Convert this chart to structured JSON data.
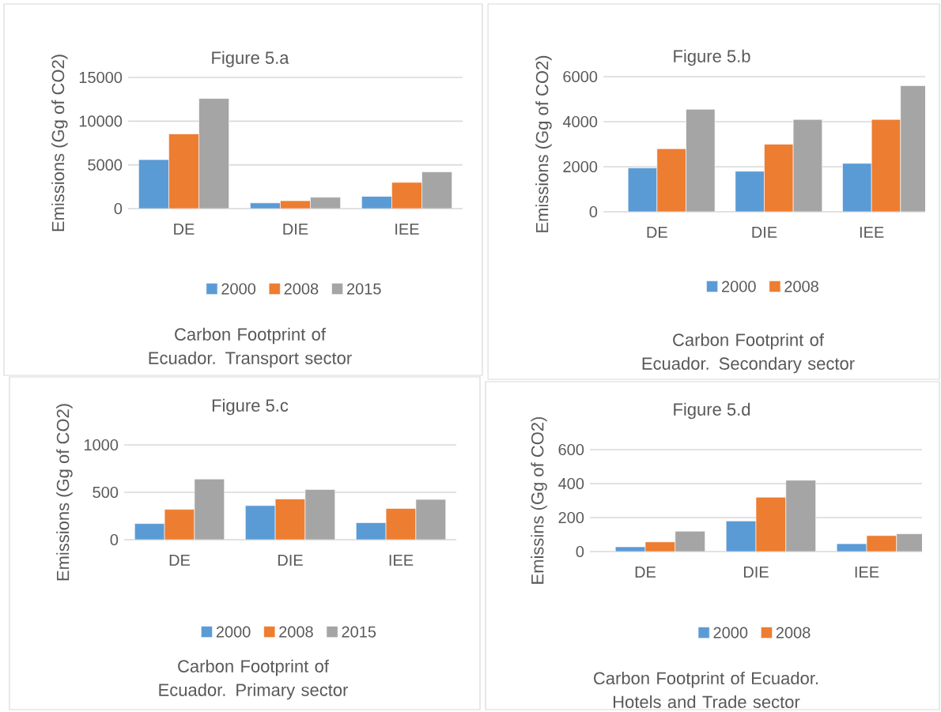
{
  "chart_data": [
    {
      "type": "bar",
      "title": "Figure 5.a",
      "ylabel": "Emissions (Gg of CO2)",
      "categories": [
        "DE",
        "DIE",
        "IEE"
      ],
      "series": [
        {
          "name": "2000",
          "color": "#5b9bd5",
          "values": [
            5600,
            650,
            1400
          ]
        },
        {
          "name": "2008",
          "color": "#ed7d31",
          "values": [
            8550,
            900,
            3000
          ]
        },
        {
          "name": "2015",
          "color": "#a5a5a5",
          "values": [
            12600,
            1300,
            4200
          ]
        }
      ],
      "ylim": [
        0,
        15000
      ],
      "yticks": [
        0,
        5000,
        10000,
        15000
      ],
      "grid": "y",
      "legend": "bottom",
      "annotations": [
        "Carbon Footprint of Ecuador. Transport sector"
      ]
    },
    {
      "type": "bar",
      "title": "Figure 5.b",
      "ylabel": "Emissions (Gg of CO2)",
      "categories": [
        "DE",
        "DIE",
        "IEE"
      ],
      "series": [
        {
          "name": "2000",
          "color": "#5b9bd5",
          "values": [
            1950,
            1800,
            2150
          ]
        },
        {
          "name": "2008",
          "color": "#ed7d31",
          "values": [
            2800,
            3000,
            4100
          ]
        },
        {
          "color": "#a5a5a5",
          "values": [
            4550,
            4100,
            5600
          ]
        }
      ],
      "ylim": [
        0,
        6000
      ],
      "yticks": [
        0,
        2000,
        4000,
        6000
      ],
      "grid": "y",
      "legend": "bottom",
      "annotations": [
        "Carbon Footprint of Ecuador. Secondary sector"
      ]
    },
    {
      "type": "bar",
      "title": "Figure 5.c",
      "ylabel": "Emissions (Gg of CO2)",
      "categories": [
        "DE",
        "DIE",
        "IEE"
      ],
      "series": [
        {
          "name": "2000",
          "color": "#5b9bd5",
          "values": [
            170,
            360,
            180
          ]
        },
        {
          "name": "2008",
          "color": "#ed7d31",
          "values": [
            320,
            430,
            330
          ]
        },
        {
          "name": "2015",
          "color": "#a5a5a5",
          "values": [
            640,
            530,
            425
          ]
        }
      ],
      "ylim": [
        0,
        1000
      ],
      "yticks": [
        0,
        500,
        1000
      ],
      "grid": "y",
      "legend": "bottom",
      "annotations": [
        "Carbon Footprint of Ecuador. Primary sector"
      ]
    },
    {
      "type": "bar",
      "title": "Figure 5.d",
      "ylabel": "Emissins (Gg of CO2)",
      "categories": [
        "DE",
        "DIE",
        "IEE"
      ],
      "series": [
        {
          "name": "2000",
          "color": "#5b9bd5",
          "values": [
            28,
            180,
            46
          ]
        },
        {
          "name": "2008",
          "color": "#ed7d31",
          "values": [
            57,
            320,
            94
          ]
        },
        {
          "color": "#a5a5a5",
          "values": [
            120,
            420,
            105
          ]
        }
      ],
      "ylim": [
        0,
        600
      ],
      "yticks": [
        0,
        200,
        400,
        600
      ],
      "grid": "y",
      "legend": "bottom",
      "annotations": [
        "Carbon Footprint of Ecuador. Hotels and Trade sector"
      ]
    }
  ]
}
